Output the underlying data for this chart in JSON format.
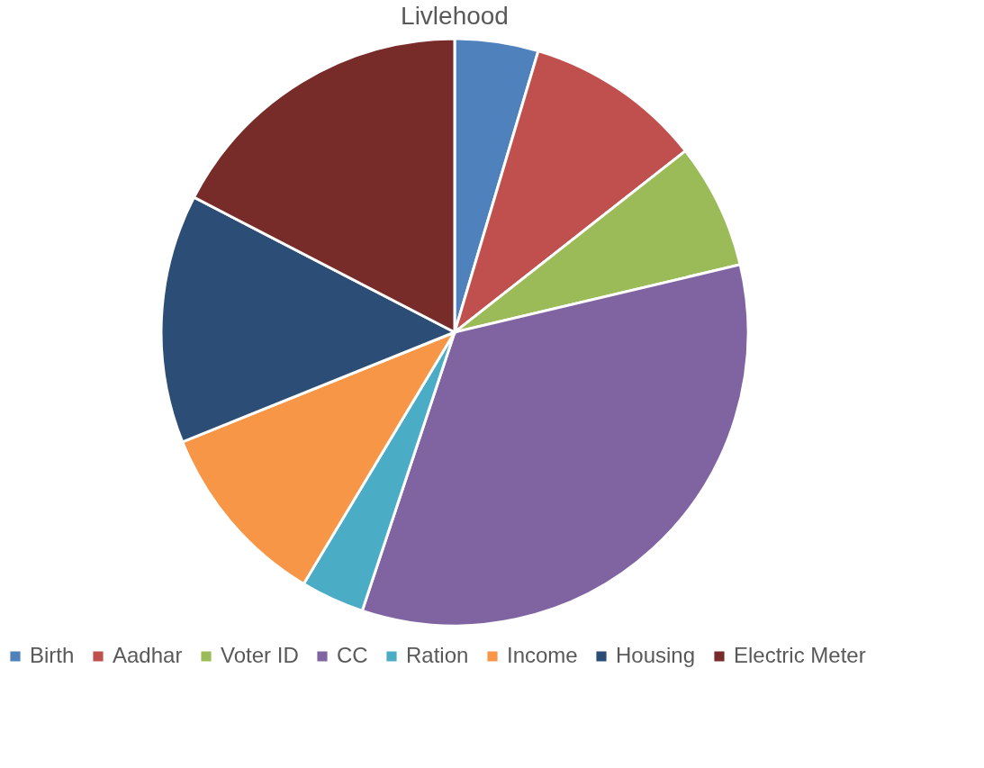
{
  "chart_data": {
    "type": "pie",
    "title": "Livlehood",
    "categories": [
      "Birth",
      "Aadhar",
      "Voter ID",
      "CC",
      "Ration",
      "Income",
      "Housing",
      "Electric Meter"
    ],
    "values": [
      4.6,
      9.8,
      6.9,
      33.8,
      3.5,
      10.3,
      13.7,
      17.4
    ],
    "colors": [
      "#4f81bd",
      "#c0504d",
      "#9bbb59",
      "#8064a2",
      "#4bacc6",
      "#f79646",
      "#2c4d75",
      "#772c2a"
    ],
    "legend": "bottom"
  }
}
